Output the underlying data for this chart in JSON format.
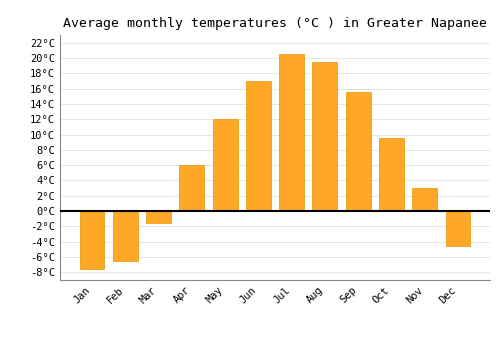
{
  "title": "Average monthly temperatures (°C ) in Greater Napanee",
  "months": [
    "Jan",
    "Feb",
    "Mar",
    "Apr",
    "May",
    "Jun",
    "Jul",
    "Aug",
    "Sep",
    "Oct",
    "Nov",
    "Dec"
  ],
  "values": [
    -7.5,
    -6.5,
    -1.5,
    6.0,
    12.0,
    17.0,
    20.5,
    19.5,
    15.5,
    9.5,
    3.0,
    -4.5
  ],
  "bar_color": "#FFA726",
  "bar_edge_color": "#E69500",
  "ylim": [
    -9,
    23
  ],
  "yticks": [
    -8,
    -6,
    -4,
    -2,
    0,
    2,
    4,
    6,
    8,
    10,
    12,
    14,
    16,
    18,
    20,
    22
  ],
  "background_color": "#ffffff",
  "grid_color": "#e0e0e0",
  "title_fontsize": 9.5,
  "tick_fontsize": 7.5,
  "zero_line_color": "#000000"
}
